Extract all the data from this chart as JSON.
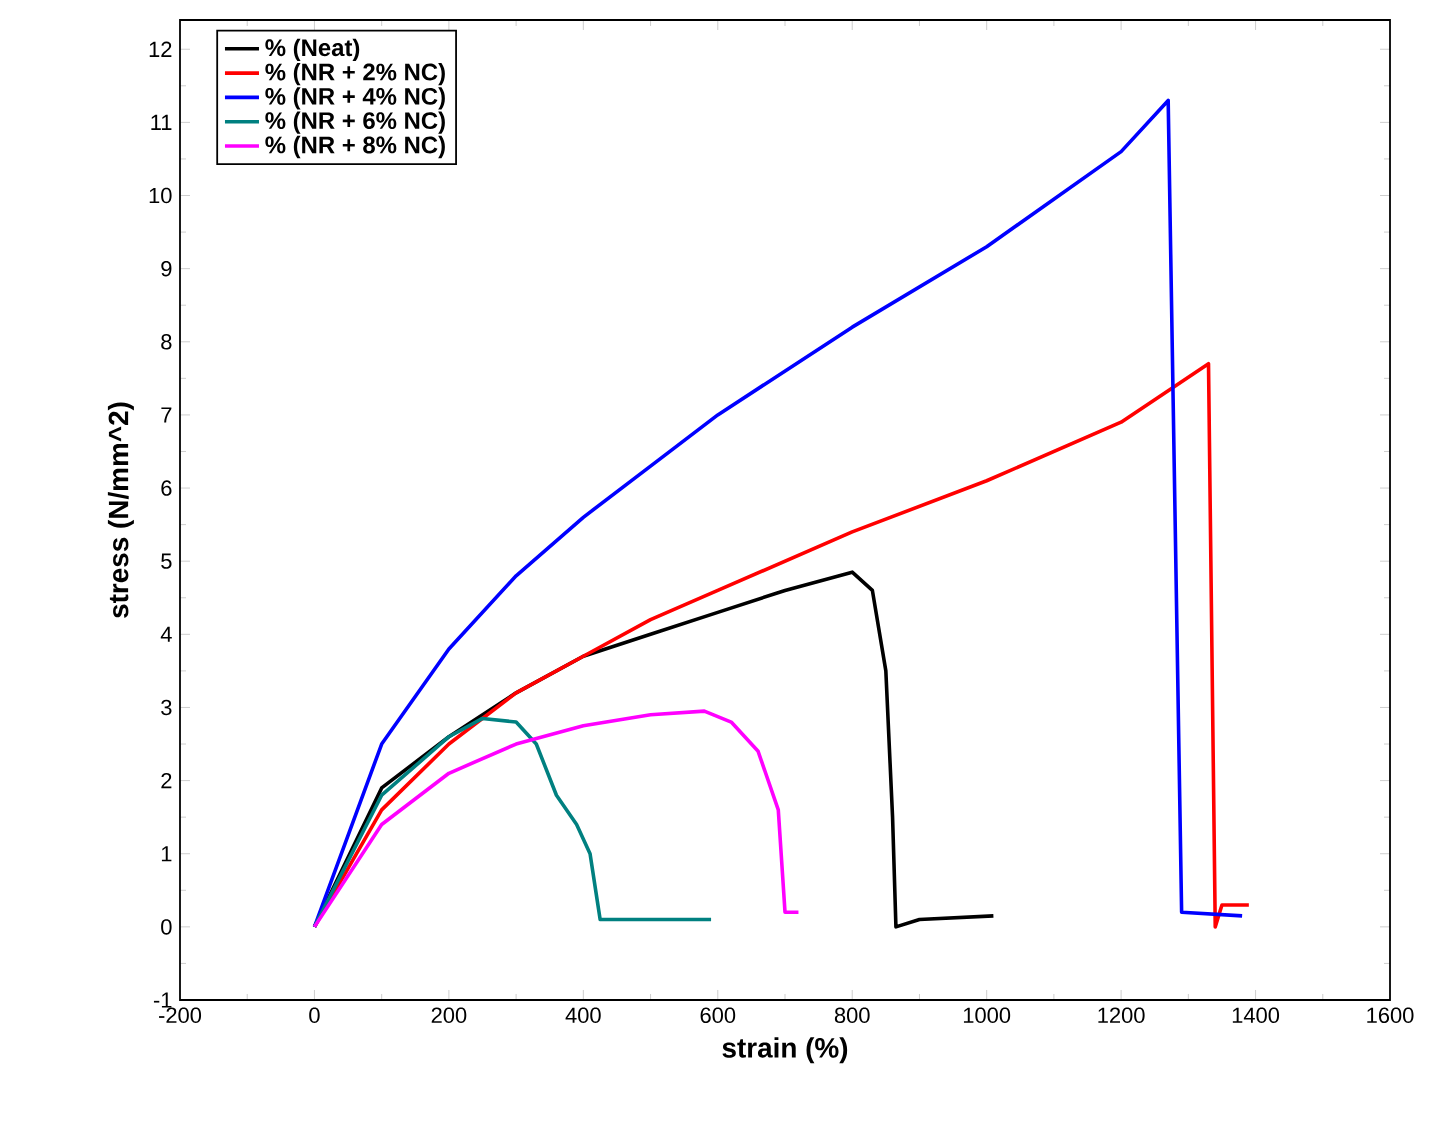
{
  "chart_data": {
    "type": "line",
    "xlabel": "strain (%)",
    "ylabel": "stress (N/mm^2)",
    "xlim": [
      -200,
      1600
    ],
    "xticks": [
      -200,
      0,
      200,
      400,
      600,
      800,
      1000,
      1200,
      1400,
      1600
    ],
    "ylim": [
      -1,
      12.4
    ],
    "yticks": [
      -1,
      0,
      1,
      2,
      3,
      4,
      5,
      6,
      7,
      8,
      9,
      10,
      11,
      12
    ],
    "legend": "top left",
    "marker": "none",
    "line_style": "solid",
    "series": [
      {
        "name": "% (Neat)",
        "color": "#000000",
        "x": [
          0,
          100,
          200,
          300,
          400,
          500,
          600,
          700,
          800,
          830,
          850,
          860,
          865,
          900,
          1010
        ],
        "values": [
          0,
          1.9,
          2.6,
          3.2,
          3.7,
          4.0,
          4.3,
          4.6,
          4.85,
          4.6,
          3.5,
          1.5,
          0,
          0.1,
          0.15
        ]
      },
      {
        "name": "% (NR + 2% NC)",
        "color": "#ff0000",
        "x": [
          0,
          100,
          200,
          300,
          400,
          500,
          600,
          800,
          1000,
          1200,
          1330,
          1340,
          1350,
          1390
        ],
        "values": [
          0,
          1.6,
          2.5,
          3.2,
          3.7,
          4.2,
          4.6,
          5.4,
          6.1,
          6.9,
          7.7,
          0,
          0.3,
          0.3
        ]
      },
      {
        "name": "% (NR + 4% NC)",
        "color": "#0000ff",
        "x": [
          0,
          100,
          200,
          300,
          400,
          500,
          600,
          800,
          1000,
          1200,
          1270,
          1290,
          1380
        ],
        "values": [
          0,
          2.5,
          3.8,
          4.8,
          5.6,
          6.3,
          7.0,
          8.2,
          9.3,
          10.6,
          11.3,
          0.2,
          0.15
        ]
      },
      {
        "name": "% (NR + 6% NC)",
        "color": "#008080",
        "x": [
          0,
          100,
          200,
          250,
          300,
          330,
          360,
          390,
          410,
          420,
          425,
          590
        ],
        "values": [
          0,
          1.8,
          2.6,
          2.85,
          2.8,
          2.5,
          1.8,
          1.4,
          1.0,
          0.4,
          0.1,
          0.1
        ]
      },
      {
        "name": "% (NR + 8% NC)",
        "color": "#ff00ff",
        "x": [
          0,
          100,
          200,
          300,
          400,
          500,
          580,
          620,
          660,
          690,
          700,
          720
        ],
        "values": [
          0,
          1.4,
          2.1,
          2.5,
          2.75,
          2.9,
          2.95,
          2.8,
          2.4,
          1.6,
          0.2,
          0.2
        ]
      }
    ]
  }
}
